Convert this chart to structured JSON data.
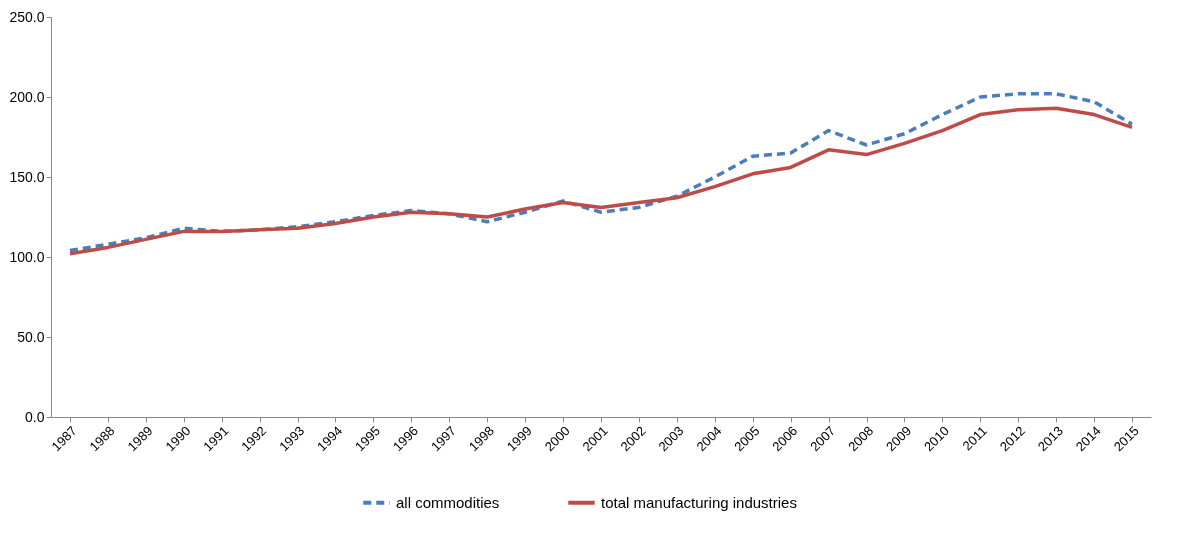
{
  "chart_data": {
    "type": "line",
    "categories": [
      "1987",
      "1988",
      "1989",
      "1990",
      "1991",
      "1992",
      "1993",
      "1994",
      "1995",
      "1996",
      "1997",
      "1998",
      "1999",
      "2000",
      "2001",
      "2002",
      "2003",
      "2004",
      "2005",
      "2006",
      "2007",
      "2008",
      "2009",
      "2010",
      "2011",
      "2012",
      "2013",
      "2014",
      "2015"
    ],
    "series": [
      {
        "name": "all commodities",
        "color": "#4a7ebb",
        "line_style": "dashed",
        "values": [
          104,
          108,
          112,
          118,
          116,
          117,
          119,
          122,
          126,
          129,
          127,
          122,
          128,
          135,
          128,
          131,
          138,
          150,
          163,
          165,
          179,
          170,
          177,
          189,
          200,
          202,
          202,
          197,
          183
        ]
      },
      {
        "name": "total manufacturing industries",
        "color": "#be4b48",
        "line_style": "solid",
        "values": [
          102,
          106,
          111,
          116,
          116,
          117,
          118,
          121,
          125,
          128,
          127,
          125,
          130,
          134,
          131,
          134,
          137,
          144,
          152,
          156,
          167,
          164,
          171,
          179,
          189,
          192,
          193,
          189,
          181
        ]
      }
    ],
    "ylim": [
      0,
      250
    ],
    "yticks": [
      {
        "value": 0,
        "label": "0.0"
      },
      {
        "value": 50,
        "label": "50.0"
      },
      {
        "value": 100,
        "label": "100.0"
      },
      {
        "value": 150,
        "label": "150.0"
      },
      {
        "value": 200,
        "label": "200.0"
      },
      {
        "value": 250,
        "label": "250.0"
      }
    ],
    "grid": false,
    "legend": "bottom",
    "marker": "none"
  }
}
